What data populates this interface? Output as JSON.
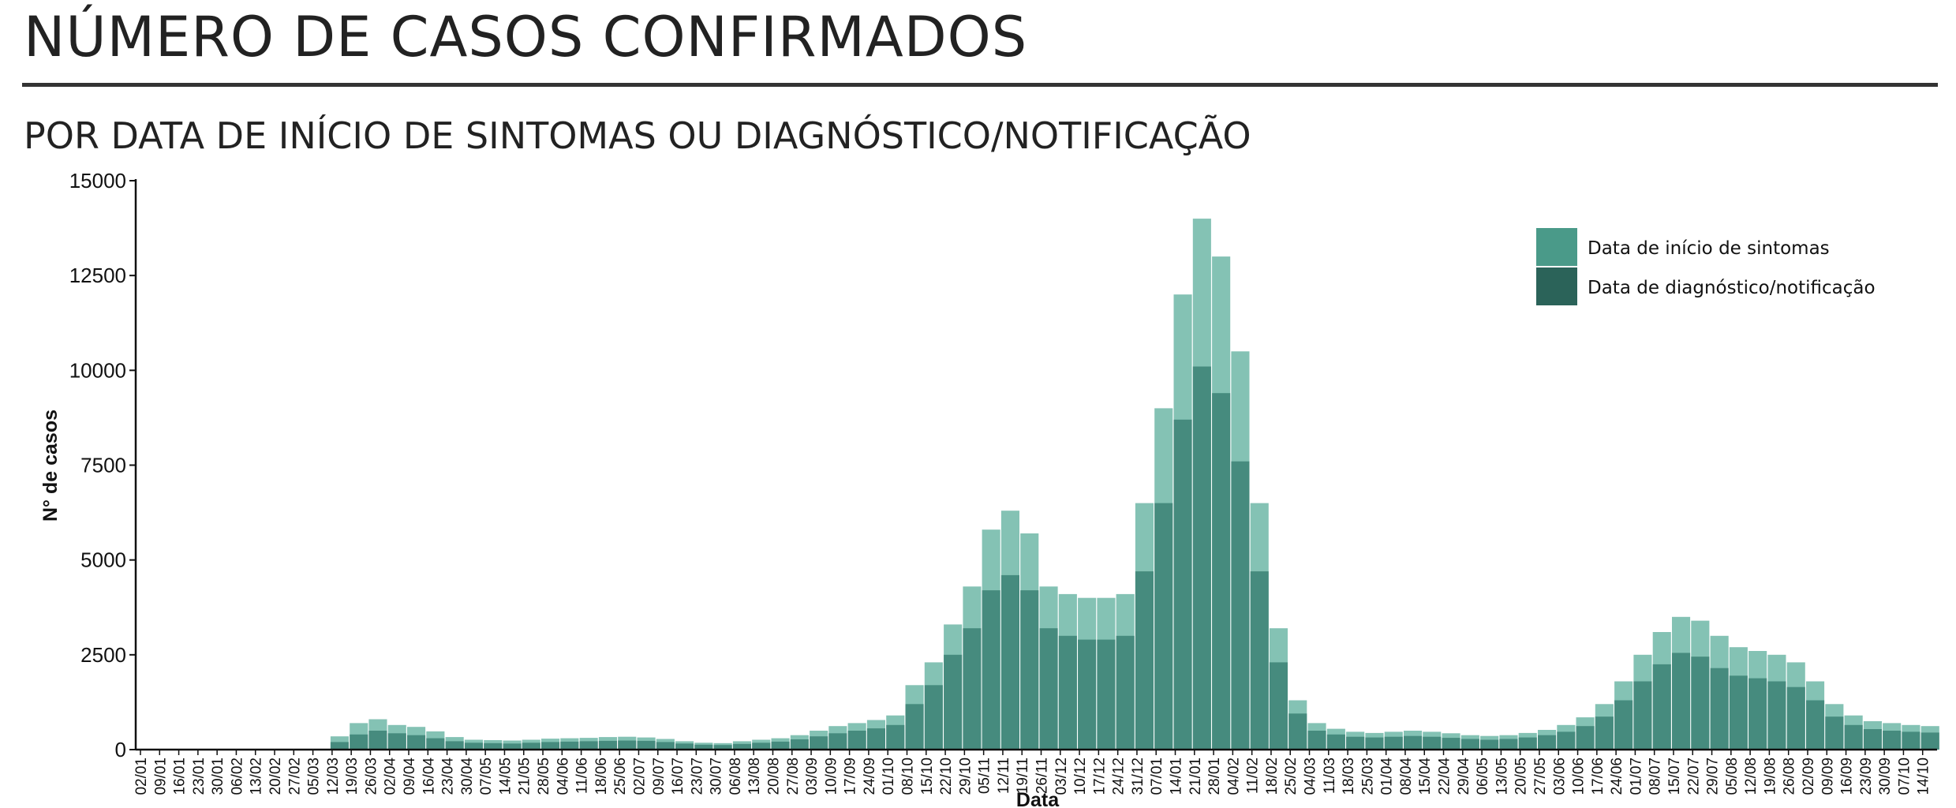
{
  "header": {
    "title": "NÚMERO DE CASOS CONFIRMADOS",
    "subtitle": "POR DATA DE INÍCIO DE SINTOMAS OU DIAGNÓSTICO/NOTIFICAÇÃO"
  },
  "chart_data": {
    "type": "bar",
    "xlabel": "Data",
    "ylabel": "N° de casos",
    "ylim": [
      0,
      15000
    ],
    "yticks": [
      0,
      2500,
      5000,
      7500,
      10000,
      12500,
      15000
    ],
    "grid": false,
    "legend_position": "top-right",
    "bar_mode": "overlay",
    "x_start": "02/01",
    "x_interval_days": 7,
    "categories": [
      "02/01",
      "09/01",
      "16/01",
      "23/01",
      "30/01",
      "06/02",
      "13/02",
      "20/02",
      "27/02",
      "05/03",
      "12/03",
      "19/03",
      "26/03",
      "02/04",
      "09/04",
      "16/04",
      "23/04",
      "30/04",
      "07/05",
      "14/05",
      "21/05",
      "28/05",
      "04/06",
      "11/06",
      "18/06",
      "25/06",
      "02/07",
      "09/07",
      "16/07",
      "23/07",
      "30/07",
      "06/08",
      "13/08",
      "20/08",
      "27/08",
      "03/09",
      "10/09",
      "17/09",
      "24/09",
      "01/10",
      "08/10",
      "15/10",
      "22/10",
      "29/10",
      "05/11",
      "12/11",
      "19/11",
      "26/11",
      "03/12",
      "10/12",
      "17/12",
      "24/12",
      "31/12",
      "07/01",
      "14/01",
      "21/01",
      "28/01",
      "04/02",
      "11/02",
      "18/02",
      "25/02",
      "04/03",
      "11/03",
      "18/03",
      "25/03",
      "01/04",
      "08/04",
      "15/04",
      "22/04",
      "29/04",
      "06/05",
      "13/05",
      "20/05",
      "27/05",
      "03/06",
      "10/06",
      "17/06",
      "24/06",
      "01/07",
      "08/07",
      "15/07",
      "22/07",
      "29/07",
      "05/08",
      "12/08",
      "19/08",
      "26/08",
      "02/09",
      "09/09",
      "16/09",
      "23/09",
      "30/09",
      "07/10",
      "14/10"
    ],
    "series": [
      {
        "name": "Data de início de sintomas",
        "color": "#7dbfb0",
        "legend_color": "#4a9a89",
        "values": [
          0,
          0,
          0,
          0,
          0,
          0,
          0,
          0,
          0,
          20,
          350,
          700,
          800,
          650,
          600,
          480,
          330,
          260,
          250,
          240,
          260,
          290,
          300,
          310,
          330,
          340,
          320,
          280,
          220,
          180,
          170,
          220,
          260,
          300,
          380,
          500,
          620,
          700,
          780,
          900,
          1700,
          2300,
          3300,
          4300,
          5800,
          6300,
          5700,
          4300,
          4100,
          4000,
          4000,
          4100,
          6500,
          9000,
          12000,
          14000,
          13000,
          10500,
          6500,
          3200,
          1300,
          700,
          550,
          470,
          440,
          470,
          500,
          470,
          430,
          380,
          360,
          380,
          440,
          520,
          650,
          850,
          1200,
          1800,
          2500,
          3100,
          3500,
          3400,
          3000,
          2700,
          2600,
          2500,
          2300,
          1800,
          1200,
          900,
          750,
          700,
          650,
          620
        ]
      },
      {
        "name": "Data de diagnóstico/notificação",
        "color": "#3f8578",
        "legend_color": "#2b6359",
        "values": [
          0,
          0,
          0,
          0,
          0,
          0,
          0,
          0,
          0,
          10,
          200,
          400,
          500,
          430,
          380,
          300,
          220,
          180,
          170,
          160,
          180,
          200,
          210,
          220,
          230,
          240,
          230,
          200,
          160,
          130,
          120,
          150,
          180,
          210,
          270,
          350,
          430,
          500,
          560,
          650,
          1200,
          1700,
          2500,
          3200,
          4200,
          4600,
          4200,
          3200,
          3000,
          2900,
          2900,
          3000,
          4700,
          6500,
          8700,
          10100,
          9400,
          7600,
          4700,
          2300,
          950,
          500,
          400,
          340,
          320,
          340,
          360,
          340,
          310,
          280,
          260,
          280,
          320,
          380,
          470,
          620,
          870,
          1300,
          1800,
          2250,
          2550,
          2450,
          2150,
          1950,
          1880,
          1800,
          1650,
          1300,
          870,
          650,
          540,
          500,
          470,
          450
        ]
      }
    ]
  }
}
